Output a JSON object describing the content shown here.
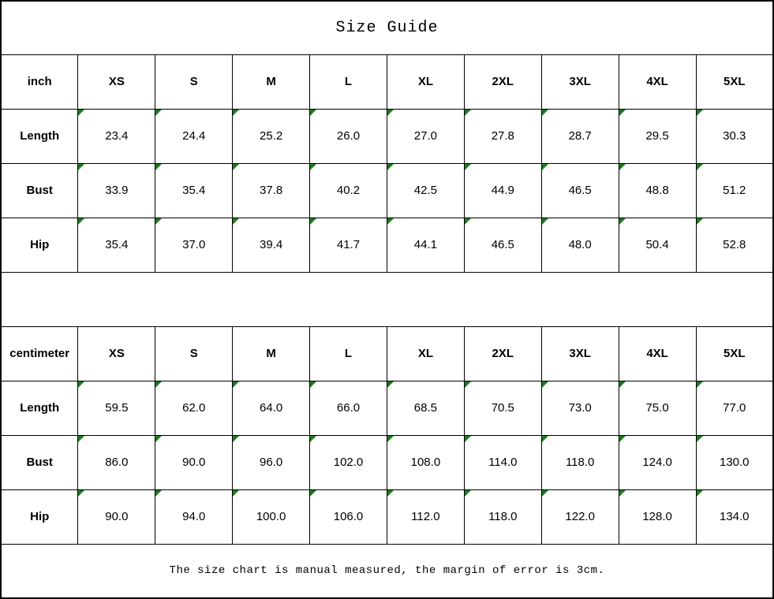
{
  "title": "Size Guide",
  "footer_note": "The size chart is manual measured, the margin of error is 3cm.",
  "colors": {
    "background": "#ffffff",
    "border": "#000000",
    "text": "#000000",
    "flag_green": "#1e7b1e"
  },
  "chart_data": [
    {
      "type": "table",
      "title": "Size Guide (inch)",
      "header": [
        "inch",
        "XS",
        "S",
        "M",
        "L",
        "XL",
        "2XL",
        "3XL",
        "4XL",
        "5XL"
      ],
      "rows": [
        [
          "Length",
          "23.4",
          "24.4",
          "25.2",
          "26.0",
          "27.0",
          "27.8",
          "28.7",
          "29.5",
          "30.3"
        ],
        [
          "Bust",
          "33.9",
          "35.4",
          "37.8",
          "40.2",
          "42.5",
          "44.9",
          "46.5",
          "48.8",
          "51.2"
        ],
        [
          "Hip",
          "35.4",
          "37.0",
          "39.4",
          "41.7",
          "44.1",
          "46.5",
          "48.0",
          "50.4",
          "52.8"
        ]
      ]
    },
    {
      "type": "table",
      "title": "Size Guide (centimeter)",
      "header": [
        "centimeter",
        "XS",
        "S",
        "M",
        "L",
        "XL",
        "2XL",
        "3XL",
        "4XL",
        "5XL"
      ],
      "rows": [
        [
          "Length",
          "59.5",
          "62.0",
          "64.0",
          "66.0",
          "68.5",
          "70.5",
          "73.0",
          "75.0",
          "77.0"
        ],
        [
          "Bust",
          "86.0",
          "90.0",
          "96.0",
          "102.0",
          "108.0",
          "114.0",
          "118.0",
          "124.0",
          "130.0"
        ],
        [
          "Hip",
          "90.0",
          "94.0",
          "100.0",
          "106.0",
          "112.0",
          "118.0",
          "122.0",
          "128.0",
          "134.0"
        ]
      ]
    }
  ]
}
